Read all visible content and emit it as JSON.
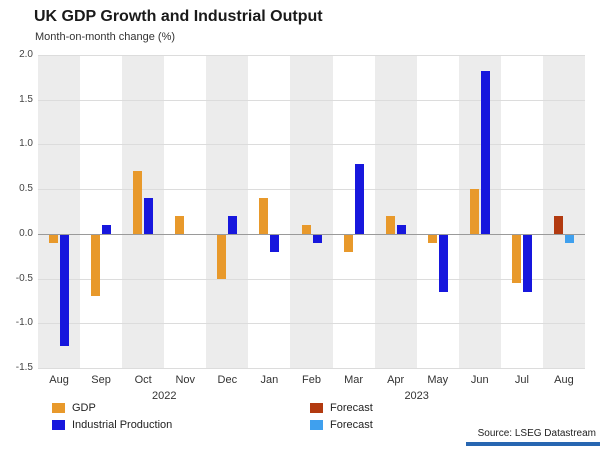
{
  "title": "UK GDP Growth and Industrial Output",
  "subtitle": "Month-on-month change (%)",
  "source": "Source: LSEG Datastream",
  "legend": [
    {
      "label": "GDP",
      "color": "#E8992B"
    },
    {
      "label": "Industrial Production",
      "color": "#1717DD"
    },
    {
      "label": "Forecast",
      "color": "#B23A10"
    },
    {
      "label": "Forecast",
      "color": "#3FA0EE"
    }
  ],
  "chart_data": {
    "type": "bar",
    "categories": [
      "Aug",
      "Sep",
      "Oct",
      "Nov",
      "Dec",
      "Jan",
      "Feb",
      "Mar",
      "Apr",
      "May",
      "Jun",
      "Jul",
      "Aug"
    ],
    "year_labels": [
      {
        "text": "2022",
        "between": [
          2,
          3
        ]
      },
      {
        "text": "2023",
        "between": [
          8,
          9
        ]
      }
    ],
    "series": [
      {
        "name": "GDP",
        "color": "#E8992B",
        "values": [
          -0.1,
          -0.7,
          0.7,
          0.2,
          -0.5,
          0.4,
          0.1,
          -0.2,
          0.2,
          -0.1,
          0.5,
          -0.55,
          0.2
        ]
      },
      {
        "name": "Industrial Production",
        "color": "#1717DD",
        "values": [
          -1.25,
          0.1,
          0.4,
          0.0,
          0.2,
          -0.2,
          -0.1,
          0.78,
          0.1,
          -0.65,
          1.82,
          -0.65,
          -0.1
        ]
      }
    ],
    "forecast": {
      "index": 12,
      "gdp_color": "#B23A10",
      "ip_color": "#3FA0EE"
    },
    "ylim": [
      -1.5,
      2.0
    ],
    "ytick_step": 0.5,
    "stripe_color": "#ececec",
    "grid": true,
    "legend_position": "bottom"
  }
}
